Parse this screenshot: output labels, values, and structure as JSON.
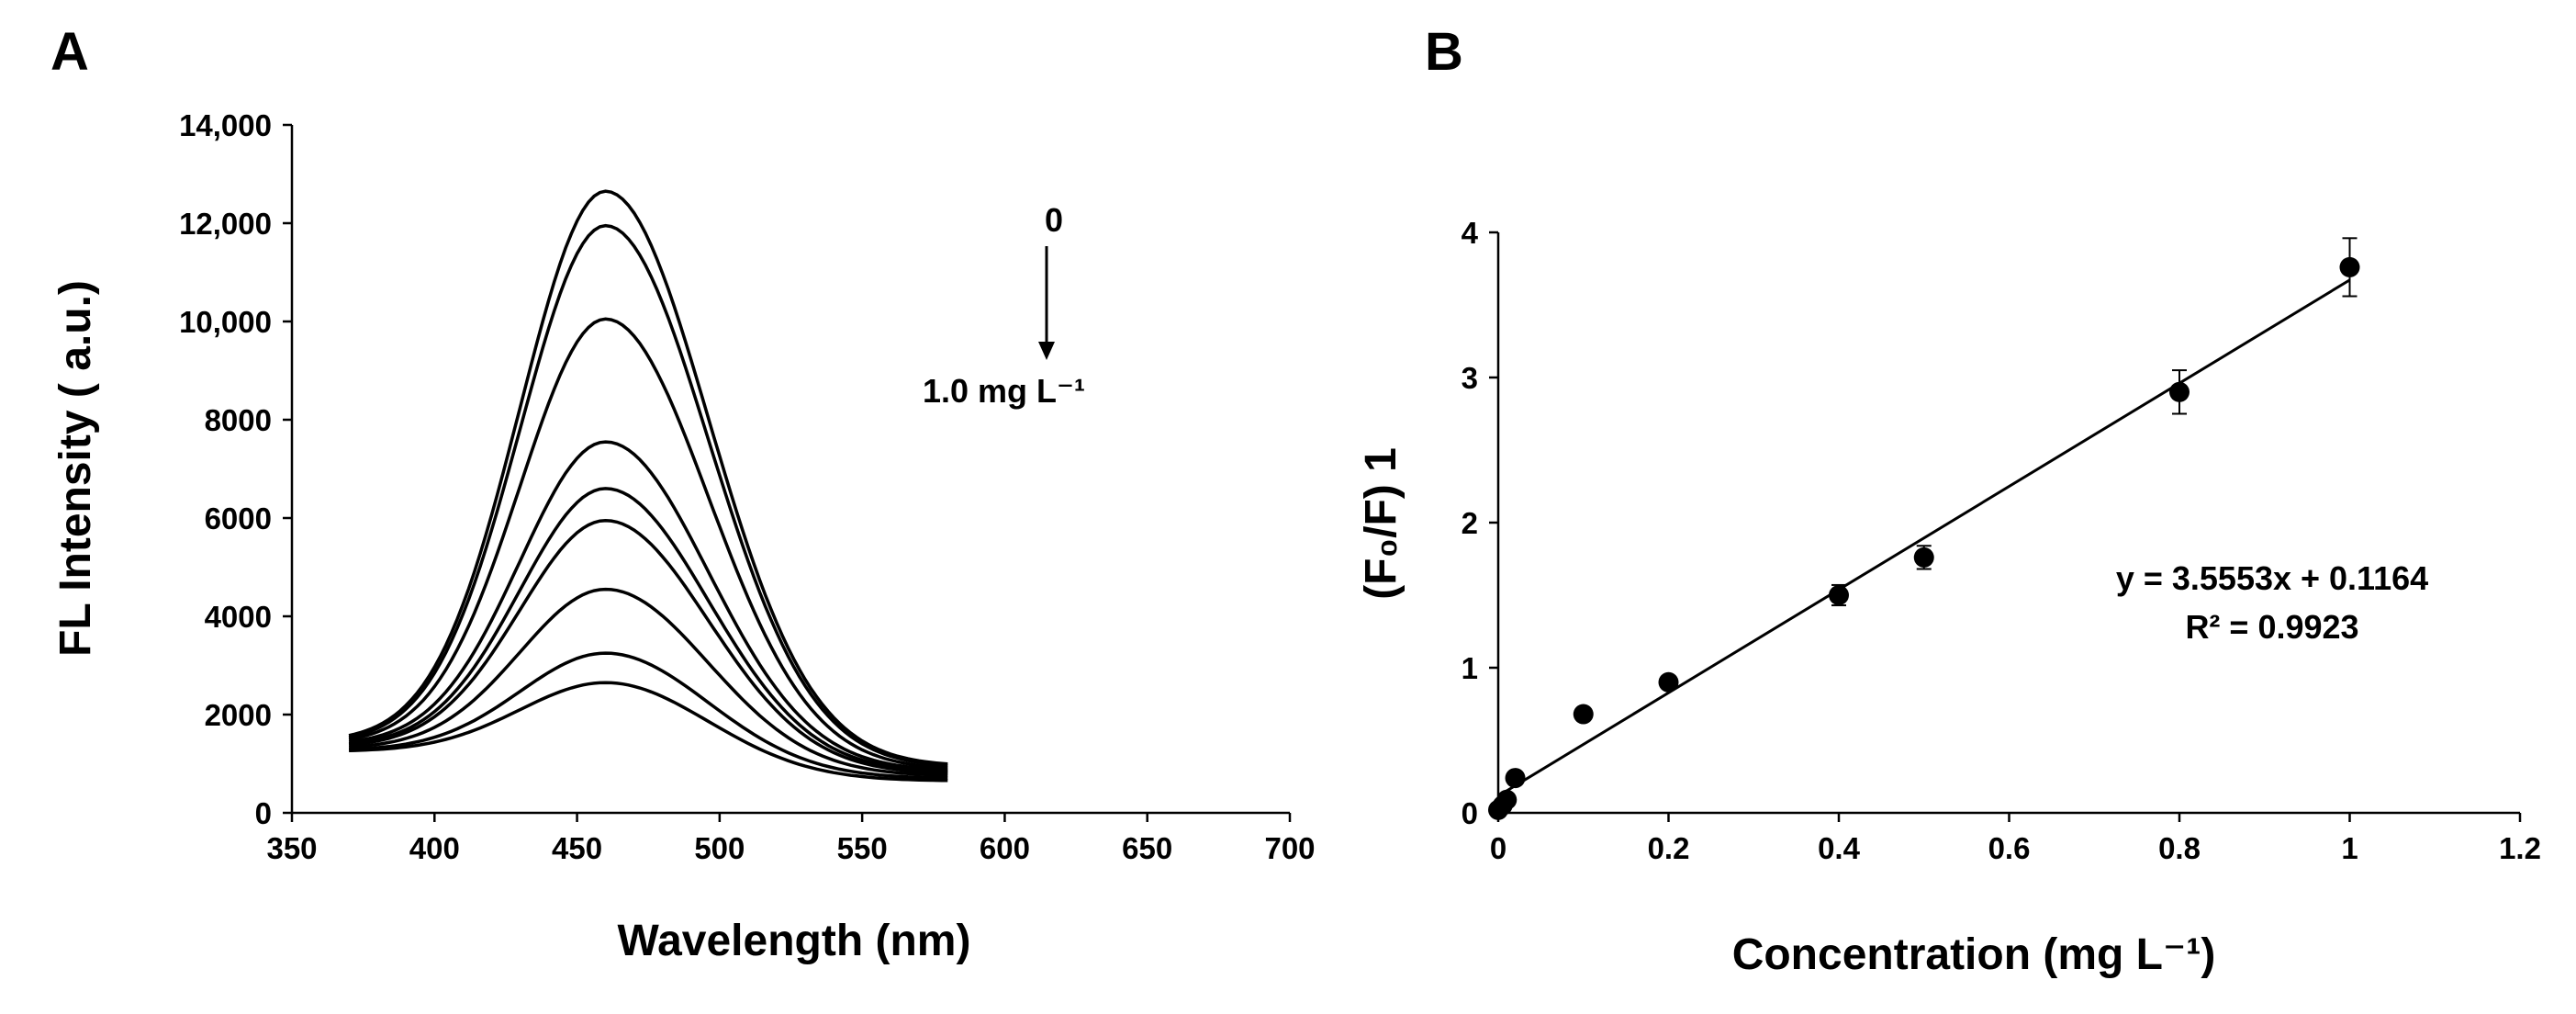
{
  "figure": {
    "panel_a_label": "A",
    "panel_b_label": "B"
  },
  "chart_data": [
    {
      "panel": "A",
      "type": "line",
      "title": "",
      "xlabel": "Wavelength (nm)",
      "ylabel": "FL Intensity ( a.u.)",
      "xlim": [
        350,
        700
      ],
      "ylim": [
        0,
        14000
      ],
      "xticks": [
        350,
        400,
        450,
        500,
        550,
        600,
        650,
        700
      ],
      "xtick_labels": [
        "350",
        "400",
        "450",
        "500",
        "550",
        "600",
        "650",
        "700"
      ],
      "yticks": [
        0,
        2000,
        4000,
        6000,
        8000,
        10000,
        12000,
        14000
      ],
      "ytick_labels": [
        "0",
        "2000",
        "4000",
        "6000",
        "8000",
        "10,000",
        "12,000",
        "14,000"
      ],
      "grid": false,
      "annotation": {
        "start_label": "0",
        "end_label": "1.0 mg L⁻¹"
      },
      "curve_shape": {
        "x_start": 370,
        "x_end": 580,
        "peak_x": 460
      },
      "series": [
        {
          "name": "curve-1",
          "peak": 12650,
          "left_baseline": 1450,
          "right_baseline": 950
        },
        {
          "name": "curve-2",
          "peak": 11950,
          "left_baseline": 1420,
          "right_baseline": 920
        },
        {
          "name": "curve-3",
          "peak": 10050,
          "left_baseline": 1400,
          "right_baseline": 880
        },
        {
          "name": "curve-4",
          "peak": 7550,
          "left_baseline": 1380,
          "right_baseline": 850
        },
        {
          "name": "curve-5",
          "peak": 6600,
          "left_baseline": 1350,
          "right_baseline": 820
        },
        {
          "name": "curve-6",
          "peak": 5950,
          "left_baseline": 1330,
          "right_baseline": 790
        },
        {
          "name": "curve-7",
          "peak": 4550,
          "left_baseline": 1300,
          "right_baseline": 750
        },
        {
          "name": "curve-8",
          "peak": 3250,
          "left_baseline": 1270,
          "right_baseline": 700
        },
        {
          "name": "curve-9",
          "peak": 2650,
          "left_baseline": 1250,
          "right_baseline": 650
        }
      ]
    },
    {
      "panel": "B",
      "type": "scatter",
      "title": "",
      "xlabel": "Concentration (mg L⁻¹)",
      "ylabel": "(F₀/F) 1",
      "xlim": [
        0,
        1.2
      ],
      "ylim": [
        0,
        4
      ],
      "xticks": [
        0,
        0.2,
        0.4,
        0.6,
        0.8,
        1,
        1.2
      ],
      "xtick_labels": [
        "0",
        "0.2",
        "0.4",
        "0.6",
        "0.8",
        "1",
        "1.2"
      ],
      "yticks": [
        0,
        1,
        2,
        3,
        4
      ],
      "ytick_labels": [
        "0",
        "1",
        "2",
        "3",
        "4"
      ],
      "grid": false,
      "points": [
        {
          "x": 0.0,
          "y": 0.02,
          "err": 0.02
        },
        {
          "x": 0.005,
          "y": 0.05,
          "err": 0.02
        },
        {
          "x": 0.01,
          "y": 0.09,
          "err": 0.02
        },
        {
          "x": 0.02,
          "y": 0.24,
          "err": 0.03
        },
        {
          "x": 0.1,
          "y": 0.68,
          "err": 0.03
        },
        {
          "x": 0.2,
          "y": 0.9,
          "err": 0.03
        },
        {
          "x": 0.4,
          "y": 1.5,
          "err": 0.07
        },
        {
          "x": 0.5,
          "y": 1.76,
          "err": 0.08
        },
        {
          "x": 0.8,
          "y": 2.9,
          "err": 0.15
        },
        {
          "x": 1.0,
          "y": 3.76,
          "err": 0.2
        }
      ],
      "fit": {
        "slope": 3.5553,
        "intercept": 0.1164,
        "x_range": [
          0,
          1.0
        ],
        "equation": "y = 3.5553x + 0.1164",
        "r2": "R² = 0.9923"
      }
    }
  ]
}
